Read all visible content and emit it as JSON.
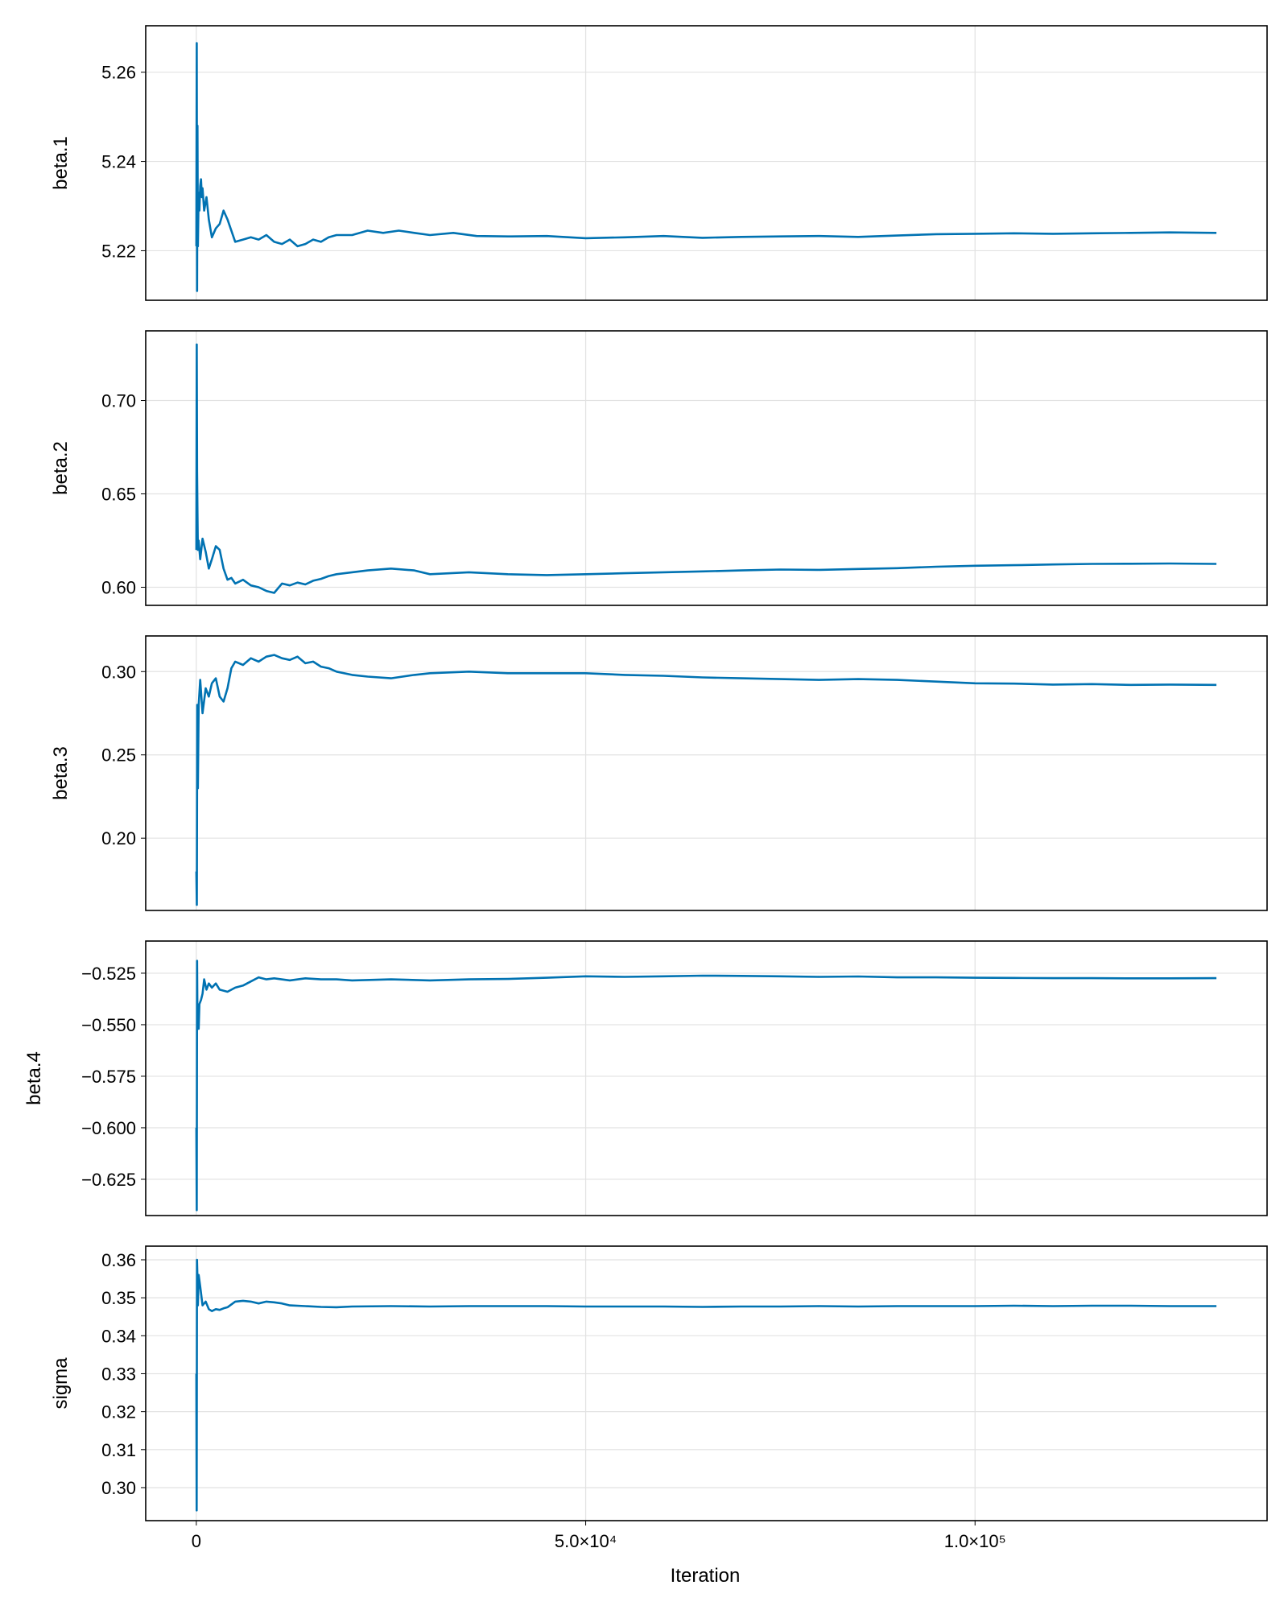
{
  "figure": {
    "xlabel": "Iteration",
    "line_color": "#0072b2",
    "grid": true
  },
  "chart_data": [
    {
      "type": "line",
      "ylabel": "beta.1",
      "xlim": [
        -6500,
        137500
      ],
      "ylim": [
        5.2089,
        5.2704
      ],
      "yticks": [
        5.22,
        5.24,
        5.26
      ],
      "ytick_labels": [
        "5.22",
        "5.24",
        "5.26"
      ],
      "xticks": [
        0,
        50000,
        100000
      ],
      "xtick_labels": [],
      "series": [
        {
          "x": [
            0,
            50,
            100,
            150,
            200,
            300,
            400,
            500,
            600,
            700,
            800,
            1000,
            1300,
            1600,
            2000,
            2500,
            3000,
            3500,
            4000,
            5000,
            6000,
            7000,
            8000,
            9000,
            10000,
            11000,
            12000,
            13000,
            14000,
            15000,
            16000,
            17000,
            18000,
            20000,
            22000,
            24000,
            26000,
            28000,
            30000,
            33000,
            36000,
            40000,
            45000,
            50000,
            55000,
            60000,
            65000,
            70000,
            75000,
            80000,
            85000,
            90000,
            95000,
            100000,
            105000,
            110000,
            115000,
            120000,
            125000,
            131000
          ],
          "y": [
            5.221,
            5.2665,
            5.211,
            5.248,
            5.221,
            5.233,
            5.229,
            5.2345,
            5.236,
            5.232,
            5.234,
            5.229,
            5.232,
            5.227,
            5.223,
            5.225,
            5.226,
            5.229,
            5.227,
            5.222,
            5.2225,
            5.223,
            5.2225,
            5.2235,
            5.222,
            5.2215,
            5.2225,
            5.221,
            5.2215,
            5.2225,
            5.222,
            5.223,
            5.2235,
            5.2235,
            5.2245,
            5.224,
            5.2245,
            5.224,
            5.2235,
            5.224,
            5.2233,
            5.2232,
            5.2233,
            5.2228,
            5.223,
            5.2233,
            5.2229,
            5.2231,
            5.2232,
            5.2233,
            5.2231,
            5.2234,
            5.2237,
            5.2238,
            5.2239,
            5.2238,
            5.2239,
            5.224,
            5.2241,
            5.224
          ]
        }
      ]
    },
    {
      "type": "line",
      "ylabel": "beta.2",
      "xlim": [
        -6500,
        137500
      ],
      "ylim": [
        0.5903,
        0.7373
      ],
      "yticks": [
        0.6,
        0.65,
        0.7
      ],
      "ytick_labels": [
        "0.60",
        "0.65",
        "0.70"
      ],
      "xticks": [
        0,
        50000,
        100000
      ],
      "xtick_labels": [],
      "series": [
        {
          "x": [
            0,
            50,
            100,
            150,
            200,
            300,
            500,
            800,
            1200,
            1600,
            2000,
            2500,
            3000,
            3500,
            4000,
            4500,
            5000,
            6000,
            7000,
            8000,
            9000,
            10000,
            11000,
            12000,
            13000,
            14000,
            15000,
            16000,
            17000,
            18000,
            20000,
            22000,
            25000,
            28000,
            30000,
            35000,
            40000,
            45000,
            50000,
            55000,
            60000,
            65000,
            70000,
            75000,
            80000,
            85000,
            90000,
            95000,
            100000,
            105000,
            110000,
            115000,
            120000,
            125000,
            131000
          ],
          "y": [
            0.62,
            0.73,
            0.662,
            0.64,
            0.62,
            0.625,
            0.615,
            0.626,
            0.619,
            0.61,
            0.615,
            0.622,
            0.62,
            0.61,
            0.604,
            0.605,
            0.602,
            0.604,
            0.601,
            0.6,
            0.598,
            0.597,
            0.602,
            0.601,
            0.6025,
            0.6015,
            0.6035,
            0.6045,
            0.606,
            0.607,
            0.608,
            0.609,
            0.61,
            0.609,
            0.607,
            0.608,
            0.607,
            0.6065,
            0.607,
            0.6075,
            0.608,
            0.6085,
            0.609,
            0.6095,
            0.6093,
            0.6098,
            0.6102,
            0.611,
            0.6115,
            0.6118,
            0.6122,
            0.6125,
            0.6126,
            0.6127,
            0.6125
          ]
        }
      ]
    },
    {
      "type": "line",
      "ylabel": "beta.3",
      "xlim": [
        -6500,
        137500
      ],
      "ylim": [
        0.1566,
        0.3214
      ],
      "yticks": [
        0.2,
        0.25,
        0.3
      ],
      "ytick_labels": [
        "0.20",
        "0.25",
        "0.30"
      ],
      "xticks": [
        0,
        50000,
        100000
      ],
      "xtick_labels": [],
      "series": [
        {
          "x": [
            0,
            60,
            120,
            200,
            300,
            500,
            800,
            1200,
            1600,
            2000,
            2500,
            3000,
            3500,
            4000,
            4500,
            5000,
            6000,
            7000,
            8000,
            9000,
            10000,
            11000,
            12000,
            13000,
            14000,
            15000,
            16000,
            17000,
            18000,
            20000,
            22000,
            25000,
            28000,
            30000,
            35000,
            40000,
            45000,
            50000,
            55000,
            60000,
            65000,
            70000,
            75000,
            80000,
            85000,
            90000,
            95000,
            100000,
            105000,
            110000,
            115000,
            120000,
            125000,
            131000
          ],
          "y": [
            0.18,
            0.16,
            0.28,
            0.23,
            0.28,
            0.295,
            0.275,
            0.29,
            0.285,
            0.293,
            0.296,
            0.285,
            0.282,
            0.29,
            0.302,
            0.306,
            0.304,
            0.308,
            0.306,
            0.309,
            0.31,
            0.308,
            0.307,
            0.309,
            0.305,
            0.306,
            0.303,
            0.302,
            0.3,
            0.298,
            0.297,
            0.296,
            0.298,
            0.299,
            0.3,
            0.299,
            0.299,
            0.299,
            0.298,
            0.2975,
            0.2965,
            0.296,
            0.2955,
            0.295,
            0.2955,
            0.295,
            0.294,
            0.293,
            0.2928,
            0.2922,
            0.2925,
            0.292,
            0.2922,
            0.292
          ]
        }
      ]
    },
    {
      "type": "line",
      "ylabel": "beta.4",
      "xlim": [
        -6500,
        137500
      ],
      "ylim": [
        -0.6426,
        -0.5094
      ],
      "yticks": [
        -0.625,
        -0.6,
        -0.575,
        -0.55,
        -0.525
      ],
      "ytick_labels": [
        "−0.625",
        "−0.600",
        "−0.575",
        "−0.550",
        "−0.525"
      ],
      "xticks": [
        0,
        50000,
        100000
      ],
      "xtick_labels": [],
      "series": [
        {
          "x": [
            0,
            50,
            100,
            150,
            200,
            300,
            400,
            600,
            800,
            1000,
            1300,
            1600,
            2000,
            2500,
            3000,
            4000,
            5000,
            6000,
            7000,
            8000,
            9000,
            10000,
            12000,
            14000,
            16000,
            18000,
            20000,
            25000,
            30000,
            35000,
            40000,
            45000,
            50000,
            55000,
            60000,
            65000,
            70000,
            75000,
            80000,
            85000,
            90000,
            95000,
            100000,
            105000,
            110000,
            115000,
            120000,
            125000,
            131000
          ],
          "y": [
            -0.6,
            -0.64,
            -0.519,
            -0.55,
            -0.545,
            -0.552,
            -0.54,
            -0.538,
            -0.535,
            -0.528,
            -0.533,
            -0.53,
            -0.532,
            -0.53,
            -0.533,
            -0.534,
            -0.532,
            -0.531,
            -0.529,
            -0.527,
            -0.528,
            -0.5275,
            -0.5285,
            -0.5275,
            -0.528,
            -0.528,
            -0.5285,
            -0.528,
            -0.5285,
            -0.528,
            -0.5278,
            -0.5272,
            -0.5265,
            -0.5268,
            -0.5265,
            -0.5262,
            -0.5263,
            -0.5265,
            -0.5268,
            -0.5266,
            -0.527,
            -0.527,
            -0.5272,
            -0.5273,
            -0.5274,
            -0.5274,
            -0.5275,
            -0.5275,
            -0.5274
          ]
        }
      ]
    },
    {
      "type": "line",
      "ylabel": "sigma",
      "xlim": [
        -6500,
        137500
      ],
      "ylim": [
        0.2913,
        0.3636
      ],
      "yticks": [
        0.3,
        0.31,
        0.32,
        0.33,
        0.34,
        0.35,
        0.36
      ],
      "ytick_labels": [
        "0.30",
        "0.31",
        "0.32",
        "0.33",
        "0.34",
        "0.35",
        "0.36"
      ],
      "xticks": [
        0,
        50000,
        100000
      ],
      "xtick_labels": [
        "0",
        "5.0×10⁴",
        "1.0×10⁵"
      ],
      "series": [
        {
          "x": [
            0,
            40,
            80,
            150,
            200,
            300,
            500,
            800,
            1200,
            1600,
            2000,
            2500,
            3000,
            3500,
            4000,
            5000,
            6000,
            7000,
            8000,
            9000,
            10000,
            11000,
            12000,
            14000,
            16000,
            18000,
            20000,
            25000,
            30000,
            35000,
            40000,
            45000,
            50000,
            55000,
            60000,
            65000,
            70000,
            75000,
            80000,
            85000,
            90000,
            95000,
            100000,
            105000,
            110000,
            115000,
            120000,
            125000,
            131000
          ],
          "y": [
            0.33,
            0.294,
            0.36,
            0.355,
            0.348,
            0.356,
            0.353,
            0.348,
            0.349,
            0.347,
            0.3465,
            0.347,
            0.3468,
            0.3472,
            0.3475,
            0.349,
            0.3492,
            0.349,
            0.3485,
            0.349,
            0.3488,
            0.3485,
            0.348,
            0.3478,
            0.3476,
            0.3475,
            0.3477,
            0.3478,
            0.3477,
            0.3478,
            0.3478,
            0.3478,
            0.3477,
            0.3477,
            0.3477,
            0.3476,
            0.3477,
            0.3477,
            0.3478,
            0.3477,
            0.3478,
            0.3478,
            0.3478,
            0.3479,
            0.3478,
            0.3479,
            0.3479,
            0.3478,
            0.3478
          ]
        }
      ]
    }
  ]
}
